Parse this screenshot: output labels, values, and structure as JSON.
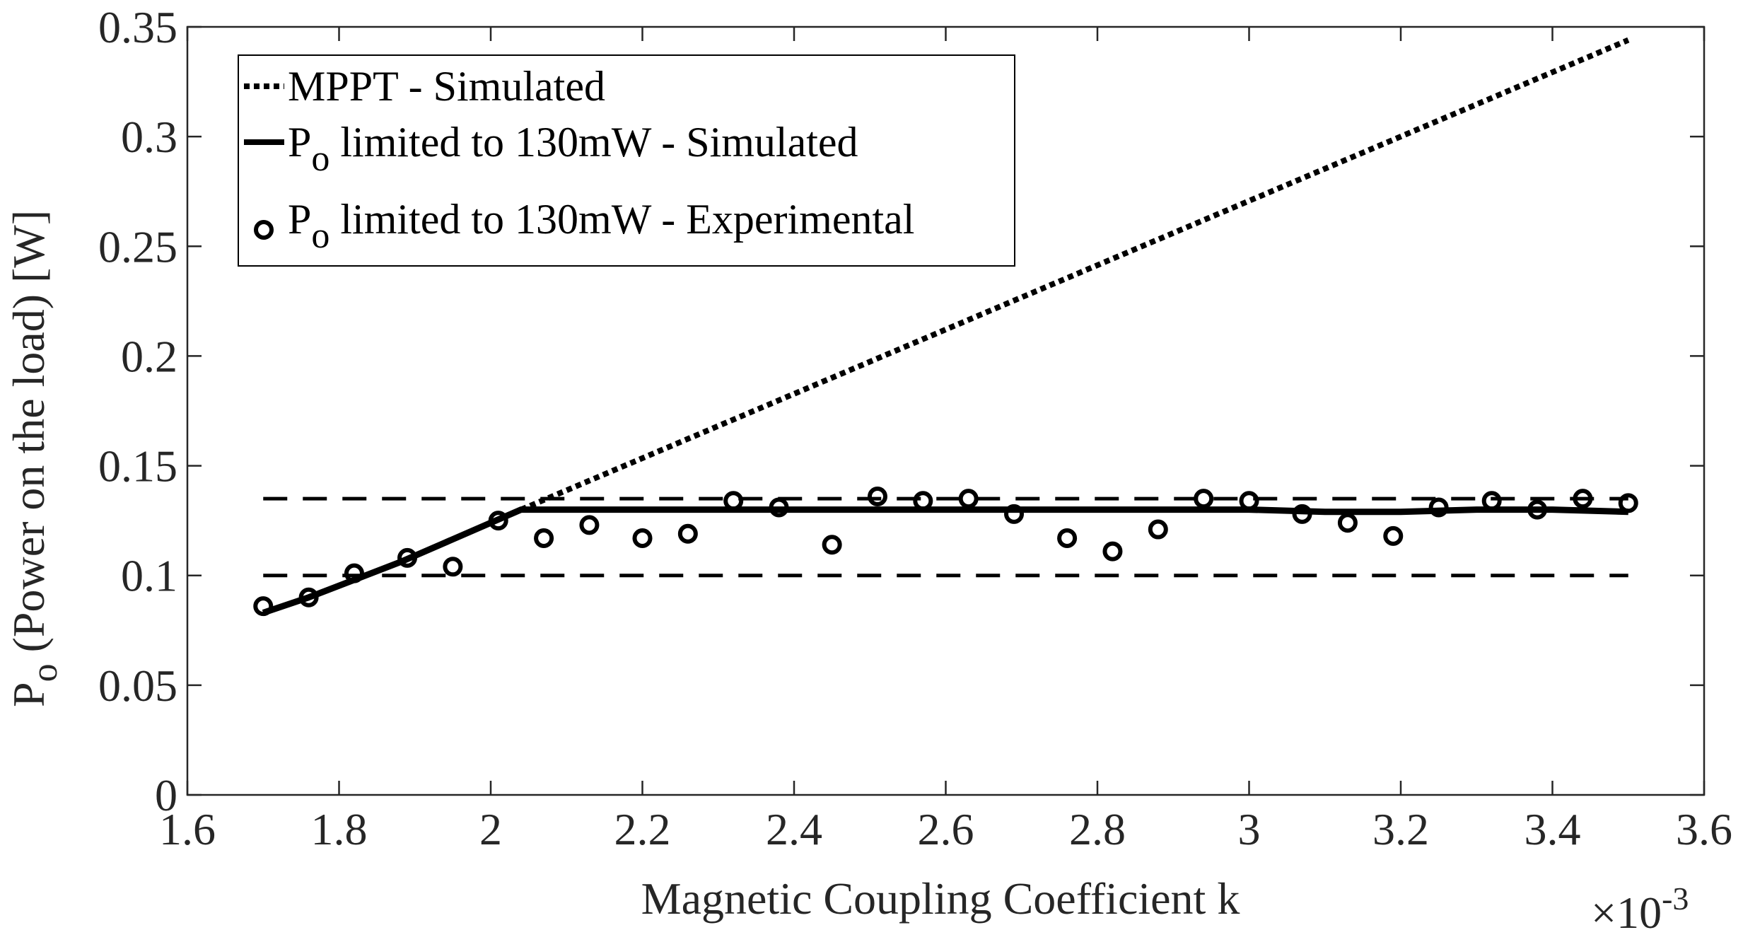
{
  "chart_data": {
    "type": "line",
    "xlabel": "Magnetic Coupling Coefficient k",
    "x_exponent": {
      "base": "10",
      "exponent": "-3"
    },
    "ylabel": {
      "main": "P",
      "sub": "o",
      "rest": " (Power on the load) [W]"
    },
    "xlim": [
      1.6,
      3.6
    ],
    "ylim": [
      0,
      0.35
    ],
    "xticks": [
      1.6,
      1.8,
      2.0,
      2.2,
      2.4,
      2.6,
      2.8,
      3.0,
      3.2,
      3.4,
      3.6
    ],
    "xtick_labels": [
      "1.6",
      "1.8",
      "2",
      "2.2",
      "2.4",
      "2.6",
      "2.8",
      "3",
      "3.2",
      "3.4",
      "3.6"
    ],
    "yticks": [
      0,
      0.05,
      0.1,
      0.15,
      0.2,
      0.25,
      0.3,
      0.35
    ],
    "ytick_labels": [
      "0",
      "0.05",
      "0.1",
      "0.15",
      "0.2",
      "0.25",
      "0.3",
      "0.35"
    ],
    "grid": false,
    "legend_position": "top-left",
    "legend": [
      {
        "series": "mppt",
        "text": "MPPT - Simulated"
      },
      {
        "series": "limited_sim",
        "main": "P",
        "sub": "o",
        "text": " limited to 130mW - Simulated"
      },
      {
        "series": "limited_exp",
        "main": "P",
        "sub": "o",
        "text": " limited to 130mW - Experimental"
      }
    ],
    "series": [
      {
        "id": "mppt",
        "name": "MPPT - Simulated",
        "style": "dotted",
        "x": [
          2.04,
          3.5
        ],
        "y": [
          0.13,
          0.344
        ]
      },
      {
        "id": "limited_sim",
        "name": "Po limited to 130mW - Simulated",
        "style": "solid",
        "x": [
          1.7,
          1.76,
          1.82,
          1.88,
          1.94,
          2.0,
          2.04,
          2.1,
          2.2,
          2.3,
          2.4,
          2.5,
          2.6,
          2.7,
          2.8,
          2.9,
          3.0,
          3.1,
          3.2,
          3.3,
          3.4,
          3.5
        ],
        "y": [
          0.083,
          0.09,
          0.098,
          0.106,
          0.115,
          0.124,
          0.13,
          0.13,
          0.13,
          0.13,
          0.13,
          0.13,
          0.13,
          0.13,
          0.13,
          0.13,
          0.13,
          0.129,
          0.129,
          0.13,
          0.13,
          0.129
        ]
      },
      {
        "id": "limited_exp",
        "name": "Po limited to 130mW - Experimental",
        "style": "circles",
        "x": [
          1.7,
          1.76,
          1.82,
          1.89,
          1.95,
          2.01,
          2.07,
          2.13,
          2.2,
          2.26,
          2.32,
          2.38,
          2.45,
          2.51,
          2.57,
          2.63,
          2.69,
          2.76,
          2.82,
          2.88,
          2.94,
          3.0,
          3.07,
          3.13,
          3.19,
          3.25,
          3.32,
          3.38,
          3.44,
          3.5
        ],
        "y": [
          0.086,
          0.09,
          0.101,
          0.108,
          0.104,
          0.125,
          0.117,
          0.123,
          0.117,
          0.119,
          0.134,
          0.131,
          0.114,
          0.136,
          0.134,
          0.135,
          0.128,
          0.117,
          0.111,
          0.121,
          0.135,
          0.134,
          0.128,
          0.124,
          0.118,
          0.131,
          0.134,
          0.13,
          0.135,
          0.133
        ]
      }
    ],
    "reference_lines": [
      {
        "style": "dashed",
        "y": 0.135,
        "x_range": [
          1.7,
          3.5
        ]
      },
      {
        "style": "dashed",
        "y": 0.1,
        "x_range": [
          1.7,
          3.5
        ]
      }
    ]
  }
}
